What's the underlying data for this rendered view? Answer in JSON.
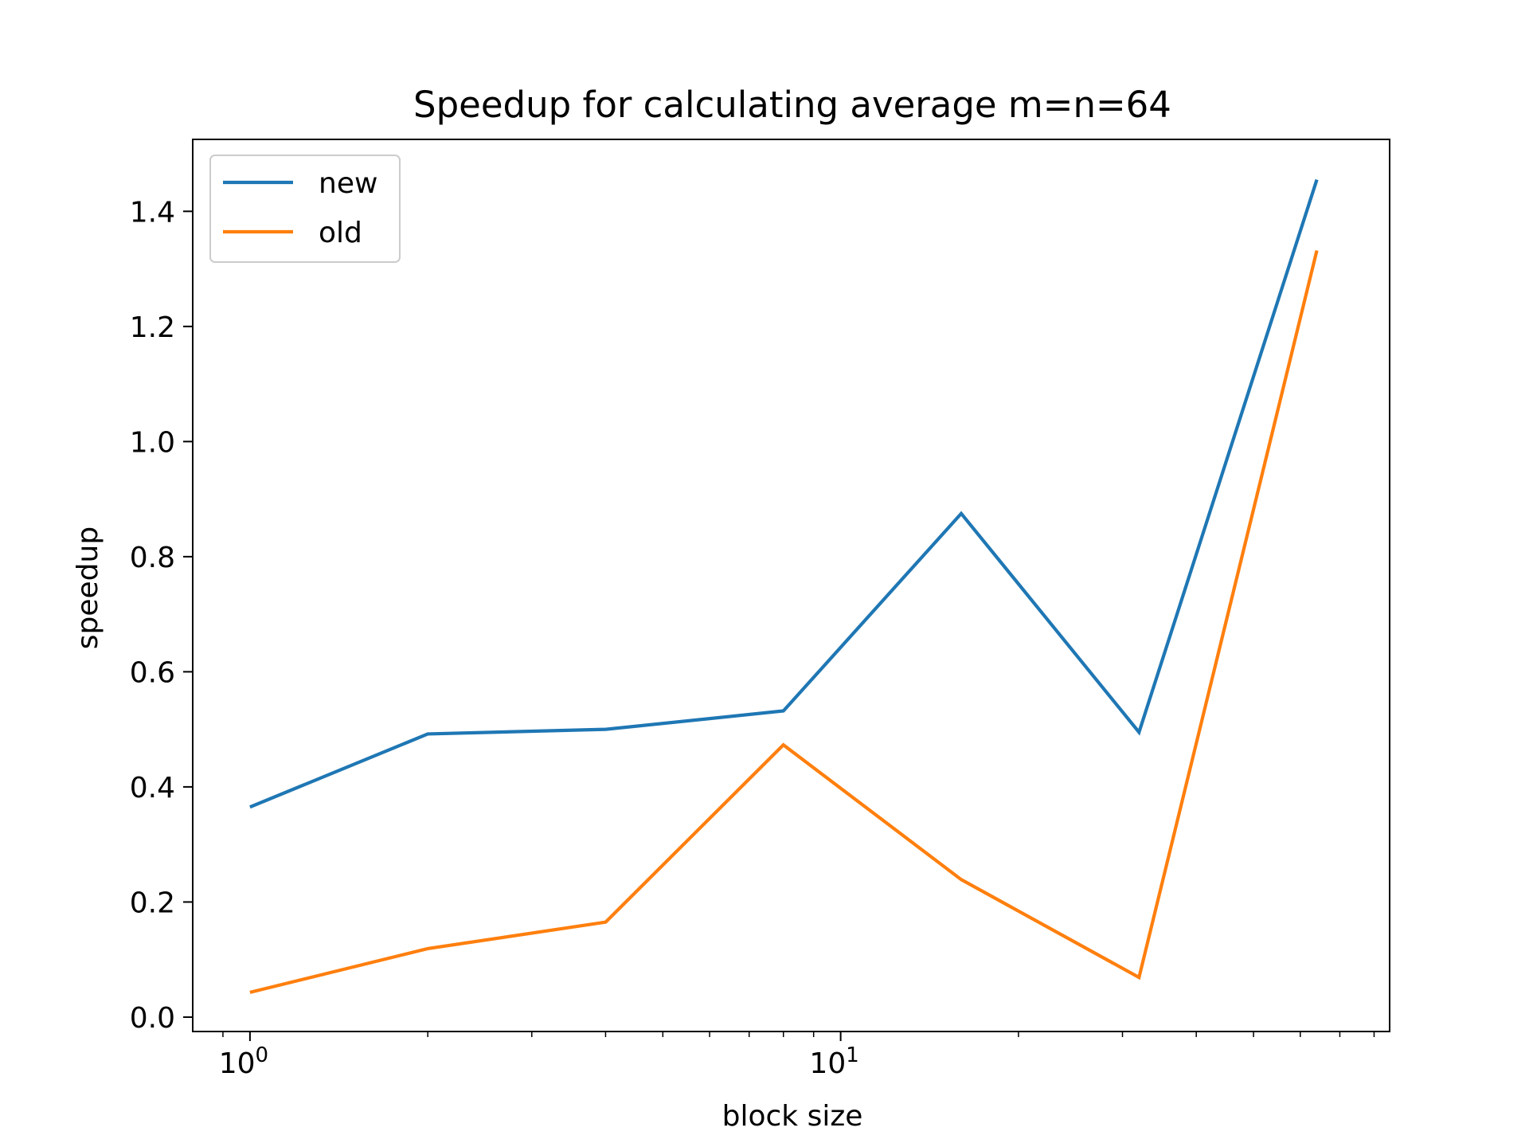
{
  "chart_data": {
    "type": "line",
    "title": "Speedup for calculating average m=n=64",
    "xlabel": "block size",
    "ylabel": "speedup",
    "xscale": "log",
    "x": [
      1,
      2,
      4,
      8,
      16,
      32,
      64
    ],
    "xlim": [
      0.8,
      85
    ],
    "ylim": [
      -0.025,
      1.525
    ],
    "yticks": [
      0.0,
      0.2,
      0.4,
      0.6,
      0.8,
      1.0,
      1.2,
      1.4
    ],
    "ytick_labels": [
      "0.0",
      "0.2",
      "0.4",
      "0.6",
      "0.8",
      "1.0",
      "1.2",
      "1.4"
    ],
    "xticks": [
      1,
      10
    ],
    "xtick_labels": [
      {
        "base": "10",
        "exp": "0"
      },
      {
        "base": "10",
        "exp": "1"
      }
    ],
    "series": [
      {
        "name": "new",
        "color": "#1f77b4",
        "values": [
          0.365,
          0.492,
          0.5,
          0.532,
          0.875,
          0.495,
          1.455
        ]
      },
      {
        "name": "old",
        "color": "#ff7f0e",
        "values": [
          0.043,
          0.119,
          0.165,
          0.473,
          0.239,
          0.069,
          1.332
        ]
      }
    ],
    "legend_position": "upper-left",
    "grid": false
  }
}
